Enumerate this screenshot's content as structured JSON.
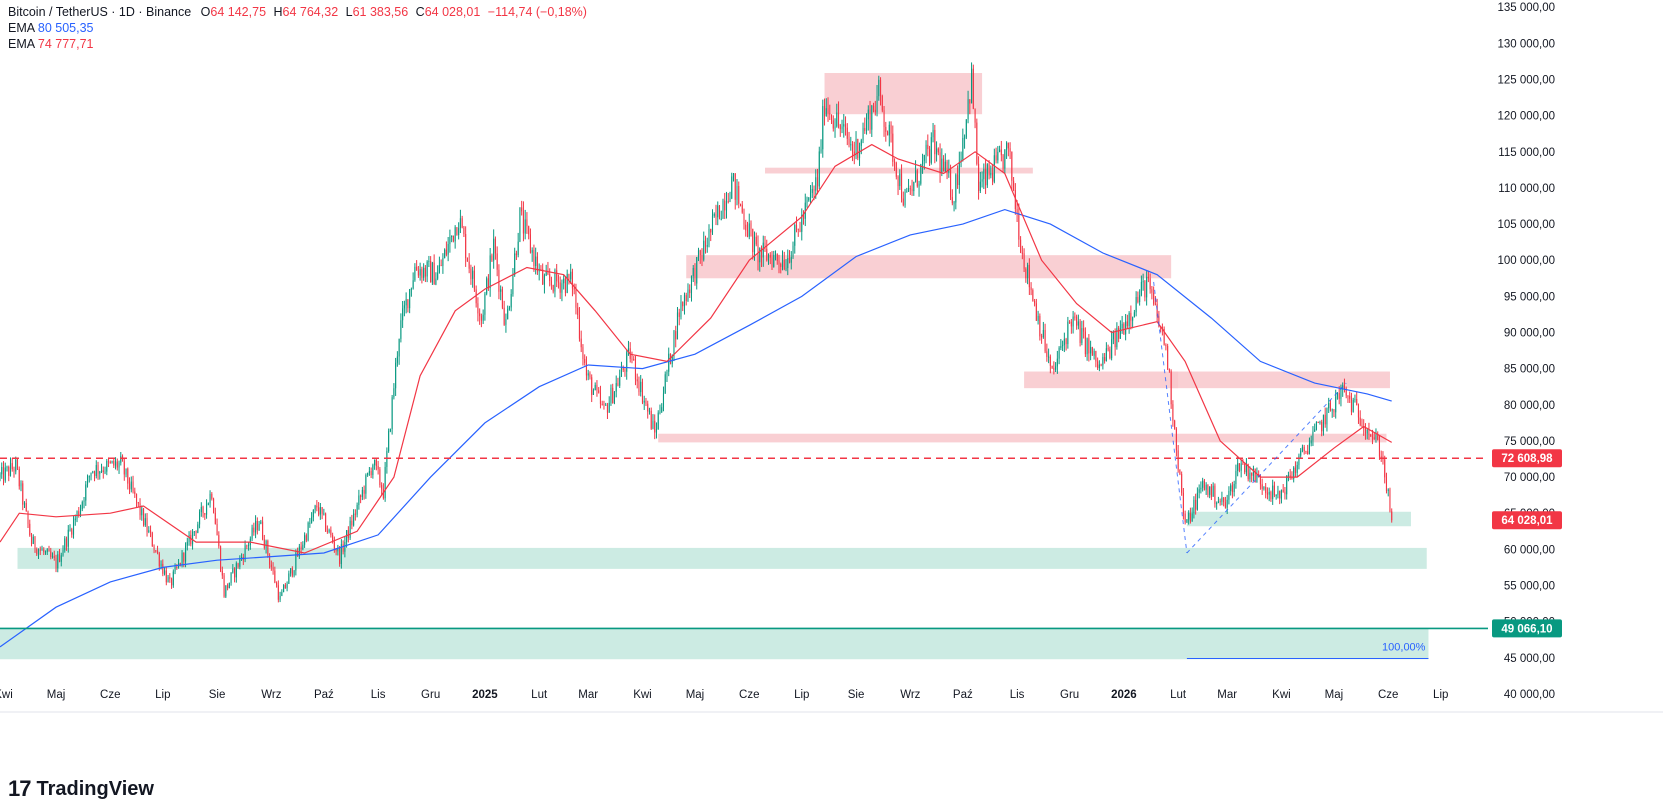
{
  "header": {
    "symbol": "Bitcoin / TetherUS · 1D · Binance",
    "o_label": "O",
    "o_value": "64 142,75",
    "h_label": "H",
    "h_value": "64 764,32",
    "l_label": "L",
    "l_value": "61 383,56",
    "c_label": "C",
    "c_value": "64 028,01",
    "change": "−114,74 (−0,18%)",
    "ema1_label": "EMA",
    "ema1_value": "80 505,35",
    "ema2_label": "EMA",
    "ema2_value": "74 777,71"
  },
  "brand": {
    "name": "TradingView",
    "logo_text": "17"
  },
  "price_tags": {
    "level": "72 608,98",
    "last": "64 028,01",
    "support": "49 066,10",
    "fib": "100,00%"
  },
  "colors": {
    "up": "#089981",
    "down": "#f23645",
    "ema_fast": "#f23645",
    "ema_slow": "#2962ff",
    "resistance_zone": "#f8c7cb",
    "support_zone": "#c6e9e0",
    "support_line": "#089981"
  },
  "chart_data": {
    "type": "candlestick",
    "title": "Bitcoin / TetherUS · 1D · Binance",
    "y_ticks": [
      40000,
      45000,
      50000,
      55000,
      60000,
      65000,
      70000,
      75000,
      80000,
      85000,
      90000,
      95000,
      100000,
      105000,
      110000,
      115000,
      120000,
      125000,
      130000,
      135000
    ],
    "y_tick_labels": [
      "40 000,00",
      "45 000,00",
      "50 000,00",
      "55 000,00",
      "60 000,00",
      "65 000,00",
      "70 000,00",
      "75 000,00",
      "80 000,00",
      "85 000,00",
      "90 000,00",
      "95 000,00",
      "100 000,00",
      "105 000,00",
      "110 000,00",
      "115 000,00",
      "120 000,00",
      "125 000,00",
      "130 000,00",
      "135 000,00"
    ],
    "ylim": [
      37500,
      136000
    ],
    "x_ticks": [
      "Kwi",
      "Maj",
      "Cze",
      "Lip",
      "Sie",
      "Wrz",
      "Paź",
      "Lis",
      "Gru",
      "2025",
      "Lut",
      "Mar",
      "Kwi",
      "Maj",
      "Cze",
      "Lip",
      "Sie",
      "Wrz",
      "Paź",
      "Lis",
      "Gru",
      "2026",
      "Lut",
      "Mar",
      "Kwi",
      "Maj",
      "Cze",
      "Lip"
    ],
    "x_tick_dates": [
      "2024-04-01",
      "2024-05-01",
      "2024-06-01",
      "2024-07-01",
      "2024-08-01",
      "2024-09-01",
      "2024-10-01",
      "2024-11-01",
      "2024-12-01",
      "2025-01-01",
      "2025-02-01",
      "2025-03-01",
      "2025-04-01",
      "2025-05-01",
      "2025-06-01",
      "2025-07-01",
      "2025-08-01",
      "2025-09-01",
      "2025-10-01",
      "2025-11-01",
      "2025-12-01",
      "2026-01-01",
      "2026-02-01",
      "2026-03-01",
      "2026-04-01",
      "2026-05-01",
      "2026-06-01",
      "2026-07-01"
    ],
    "xlim": [
      "2024-03-30",
      "2026-07-28"
    ],
    "close_path": [
      [
        "2024-03-30",
        70000
      ],
      [
        "2024-04-08",
        71500
      ],
      [
        "2024-04-17",
        61000
      ],
      [
        "2024-05-01",
        58000
      ],
      [
        "2024-05-15",
        66000
      ],
      [
        "2024-05-21",
        71000
      ],
      [
        "2024-06-07",
        71800
      ],
      [
        "2024-06-25",
        61000
      ],
      [
        "2024-07-05",
        55000
      ],
      [
        "2024-07-29",
        68000
      ],
      [
        "2024-08-05",
        54000
      ],
      [
        "2024-08-25",
        64000
      ],
      [
        "2024-09-06",
        53000
      ],
      [
        "2024-09-27",
        66000
      ],
      [
        "2024-10-10",
        59000
      ],
      [
        "2024-10-29",
        72000
      ],
      [
        "2024-11-04",
        68000
      ],
      [
        "2024-11-13",
        90000
      ],
      [
        "2024-11-22",
        99000
      ],
      [
        "2024-12-05",
        98000
      ],
      [
        "2024-12-17",
        106000
      ],
      [
        "2024-12-30",
        92000
      ],
      [
        "2025-01-06",
        102000
      ],
      [
        "2025-01-13",
        91000
      ],
      [
        "2025-01-21",
        106000
      ],
      [
        "2025-02-03",
        97000
      ],
      [
        "2025-02-20",
        97000
      ],
      [
        "2025-02-28",
        84000
      ],
      [
        "2025-03-10",
        79000
      ],
      [
        "2025-03-25",
        87000
      ],
      [
        "2025-04-08",
        76000
      ],
      [
        "2025-04-22",
        93000
      ],
      [
        "2025-05-10",
        104000
      ],
      [
        "2025-05-22",
        111000
      ],
      [
        "2025-06-05",
        101000
      ],
      [
        "2025-06-22",
        100000
      ],
      [
        "2025-07-10",
        111000
      ],
      [
        "2025-07-14",
        122000
      ],
      [
        "2025-07-31",
        115000
      ],
      [
        "2025-08-14",
        123000
      ],
      [
        "2025-08-29",
        108000
      ],
      [
        "2025-09-14",
        116000
      ],
      [
        "2025-09-26",
        109000
      ],
      [
        "2025-10-06",
        125000
      ],
      [
        "2025-10-10",
        110000
      ],
      [
        "2025-10-27",
        115000
      ],
      [
        "2025-11-04",
        101000
      ],
      [
        "2025-11-21",
        84000
      ],
      [
        "2025-12-02",
        92000
      ],
      [
        "2025-12-18",
        85000
      ],
      [
        "2026-01-05",
        93000
      ],
      [
        "2026-01-14",
        97000
      ],
      [
        "2026-01-25",
        88000
      ],
      [
        "2026-02-05",
        63000
      ],
      [
        "2026-02-15",
        69000
      ],
      [
        "2026-02-28",
        66000
      ],
      [
        "2026-03-08",
        72000
      ],
      [
        "2026-03-22",
        69000
      ],
      [
        "2026-03-30",
        67000
      ],
      [
        "2026-04-15",
        74000
      ],
      [
        "2026-04-28",
        79000
      ],
      [
        "2026-05-06",
        82000
      ],
      [
        "2026-05-20",
        77000
      ],
      [
        "2026-05-28",
        73500
      ],
      [
        "2026-06-03",
        64028
      ]
    ],
    "ema_fast": [
      [
        "2024-03-30",
        61000
      ],
      [
        "2024-04-10",
        65000
      ],
      [
        "2024-05-01",
        64500
      ],
      [
        "2024-06-01",
        65000
      ],
      [
        "2024-06-20",
        66000
      ],
      [
        "2024-07-20",
        61000
      ],
      [
        "2024-08-20",
        61000
      ],
      [
        "2024-09-20",
        59500
      ],
      [
        "2024-10-20",
        62500
      ],
      [
        "2024-11-10",
        70000
      ],
      [
        "2024-11-25",
        84000
      ],
      [
        "2024-12-15",
        93000
      ],
      [
        "2025-01-01",
        96000
      ],
      [
        "2025-01-25",
        99000
      ],
      [
        "2025-02-15",
        98000
      ],
      [
        "2025-03-05",
        93000
      ],
      [
        "2025-03-25",
        87000
      ],
      [
        "2025-04-15",
        86000
      ],
      [
        "2025-05-10",
        92000
      ],
      [
        "2025-06-01",
        100000
      ],
      [
        "2025-07-01",
        106000
      ],
      [
        "2025-07-20",
        113000
      ],
      [
        "2025-08-10",
        116000
      ],
      [
        "2025-08-25",
        114000
      ],
      [
        "2025-09-20",
        112000
      ],
      [
        "2025-10-08",
        115000
      ],
      [
        "2025-10-25",
        112000
      ],
      [
        "2025-11-15",
        100000
      ],
      [
        "2025-12-05",
        94000
      ],
      [
        "2025-12-25",
        90000
      ],
      [
        "2026-01-20",
        91500
      ],
      [
        "2026-02-05",
        86000
      ],
      [
        "2026-02-25",
        75000
      ],
      [
        "2026-03-20",
        70000
      ],
      [
        "2026-04-10",
        70000
      ],
      [
        "2026-05-01",
        74000
      ],
      [
        "2026-05-18",
        77000
      ],
      [
        "2026-06-03",
        74800
      ]
    ],
    "ema_slow": [
      [
        "2024-03-30",
        46500
      ],
      [
        "2024-05-01",
        52000
      ],
      [
        "2024-06-01",
        55500
      ],
      [
        "2024-07-01",
        57500
      ],
      [
        "2024-08-01",
        58500
      ],
      [
        "2024-09-01",
        59000
      ],
      [
        "2024-10-01",
        59500
      ],
      [
        "2024-11-01",
        62000
      ],
      [
        "2024-12-01",
        70000
      ],
      [
        "2025-01-01",
        77500
      ],
      [
        "2025-02-01",
        82500
      ],
      [
        "2025-03-01",
        85500
      ],
      [
        "2025-04-01",
        85000
      ],
      [
        "2025-05-01",
        87000
      ],
      [
        "2025-06-01",
        91000
      ],
      [
        "2025-07-01",
        95000
      ],
      [
        "2025-08-01",
        100500
      ],
      [
        "2025-09-01",
        103500
      ],
      [
        "2025-10-01",
        105000
      ],
      [
        "2025-10-25",
        107000
      ],
      [
        "2025-11-20",
        105000
      ],
      [
        "2025-12-20",
        101000
      ],
      [
        "2026-01-20",
        98000
      ],
      [
        "2026-02-20",
        92000
      ],
      [
        "2026-03-20",
        86000
      ],
      [
        "2026-04-20",
        83000
      ],
      [
        "2026-05-20",
        81500
      ],
      [
        "2026-06-03",
        80505
      ]
    ],
    "resistance_zones": [
      {
        "from": "2025-07-14",
        "to": "2025-10-12",
        "low": 120200,
        "high": 125900
      },
      {
        "from": "2025-06-10",
        "to": "2025-11-10",
        "low": 112000,
        "high": 112800
      },
      {
        "from": "2025-04-26",
        "to": "2026-01-28",
        "low": 97500,
        "high": 100700
      },
      {
        "from": "2025-11-05",
        "to": "2026-02-01",
        "low": 82300,
        "high": 84600
      },
      {
        "from": "2026-01-28",
        "to": "2026-06-02",
        "low": 82300,
        "high": 84600
      },
      {
        "from": "2025-04-10",
        "to": "2026-05-31",
        "low": 74800,
        "high": 76000
      }
    ],
    "support_zones": [
      {
        "from": "2024-04-09",
        "to": "2026-06-23",
        "low": 57300,
        "high": 60200
      },
      {
        "from": "2026-02-06",
        "to": "2026-06-14",
        "low": 63200,
        "high": 65200
      },
      {
        "from": "2024-03-30",
        "to": "2026-06-24",
        "low": 44800,
        "high": 49000
      }
    ],
    "horizontal_levels": [
      {
        "price": 72608.98,
        "style": "dashed",
        "color": "#f23645"
      },
      {
        "price": 49066.1,
        "style": "solid",
        "color": "#089981"
      }
    ],
    "fib_line": {
      "from": "2026-02-06",
      "to": "2026-06-24",
      "price": 44900
    },
    "trend_lines": [
      [
        [
          "2026-01-18",
          97000
        ],
        [
          "2026-02-06",
          59500
        ]
      ],
      [
        [
          "2026-02-06",
          59500
        ],
        [
          "2026-05-08",
          83000
        ]
      ]
    ],
    "last_price": 64028.01
  }
}
